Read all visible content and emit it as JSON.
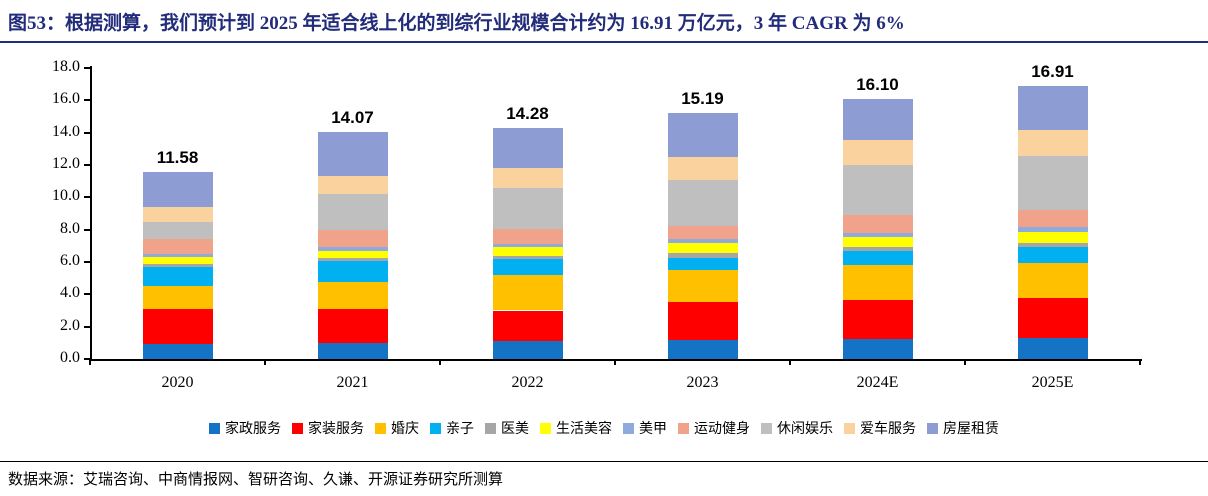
{
  "title": "图53：根据测算，我们预计到 2025 年适合线上化的到综行业规模合计约为 16.91 万亿元，3 年 CAGR 为 6%",
  "source": "数据来源：艾瑞咨询、中商情报网、智研咨询、久谦、开源证券研究所测算",
  "accent_colors": {
    "title_navy": "#222C7A",
    "axis_black": "#000000"
  },
  "chart_data": {
    "type": "bar",
    "stacked": true,
    "grid": false,
    "legend_position": "bottom",
    "categories": [
      "2020",
      "2021",
      "2022",
      "2023",
      "2024E",
      "2025E"
    ],
    "totals": [
      11.58,
      14.07,
      14.28,
      15.19,
      16.1,
      16.91
    ],
    "total_labels": [
      "11.58",
      "14.07",
      "14.28",
      "15.19",
      "16.10",
      "16.91"
    ],
    "ylim": [
      0,
      18
    ],
    "ytick_step": 2,
    "ytick_labels": [
      "0.0",
      "2.0",
      "4.0",
      "6.0",
      "8.0",
      "10.0",
      "12.0",
      "14.0",
      "16.0",
      "18.0"
    ],
    "series": [
      {
        "name": "家政服务",
        "color": "#1473C4",
        "values": [
          0.9,
          1.0,
          1.1,
          1.15,
          1.25,
          1.3
        ]
      },
      {
        "name": "家装服务",
        "color": "#FE0000",
        "values": [
          2.2,
          2.1,
          1.9,
          2.35,
          2.4,
          2.45
        ]
      },
      {
        "name": "婚庆",
        "color": "#FFC000",
        "values": [
          1.4,
          1.65,
          2.2,
          2.0,
          2.15,
          2.2
        ]
      },
      {
        "name": "亲子",
        "color": "#00B0F0",
        "values": [
          1.2,
          1.3,
          1.0,
          0.75,
          0.9,
          0.95
        ]
      },
      {
        "name": "医美",
        "color": "#A6A6A6",
        "values": [
          0.2,
          0.2,
          0.2,
          0.3,
          0.25,
          0.3
        ]
      },
      {
        "name": "生活美容",
        "color": "#FFFF00",
        "values": [
          0.4,
          0.45,
          0.5,
          0.6,
          0.6,
          0.65
        ]
      },
      {
        "name": "美甲",
        "color": "#8FAADC",
        "values": [
          0.2,
          0.2,
          0.2,
          0.25,
          0.25,
          0.3
        ]
      },
      {
        "name": "运动健身",
        "color": "#F0A28A",
        "values": [
          0.9,
          1.1,
          0.95,
          0.85,
          1.1,
          1.05
        ]
      },
      {
        "name": "休闲娱乐",
        "color": "#BFBFBF",
        "values": [
          1.1,
          2.2,
          2.5,
          2.8,
          3.1,
          3.35
        ]
      },
      {
        "name": "爱车服务",
        "color": "#FAD29E",
        "values": [
          0.9,
          1.1,
          1.25,
          1.45,
          1.55,
          1.6
        ]
      },
      {
        "name": "房屋租赁",
        "color": "#8D9CD3",
        "values": [
          2.18,
          2.77,
          2.48,
          2.69,
          2.55,
          2.76
        ]
      }
    ]
  }
}
